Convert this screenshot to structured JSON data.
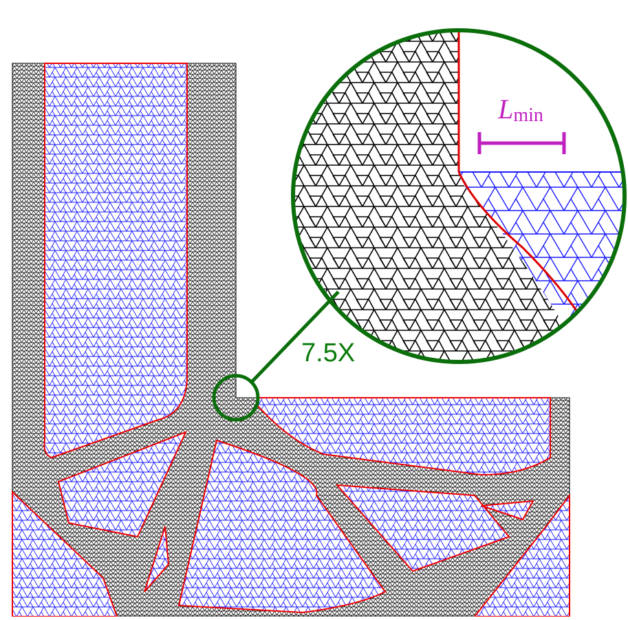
{
  "annotations": {
    "zoom_label": "7.5X",
    "length_label": {
      "base": "L",
      "subscript": "min"
    }
  }
}
